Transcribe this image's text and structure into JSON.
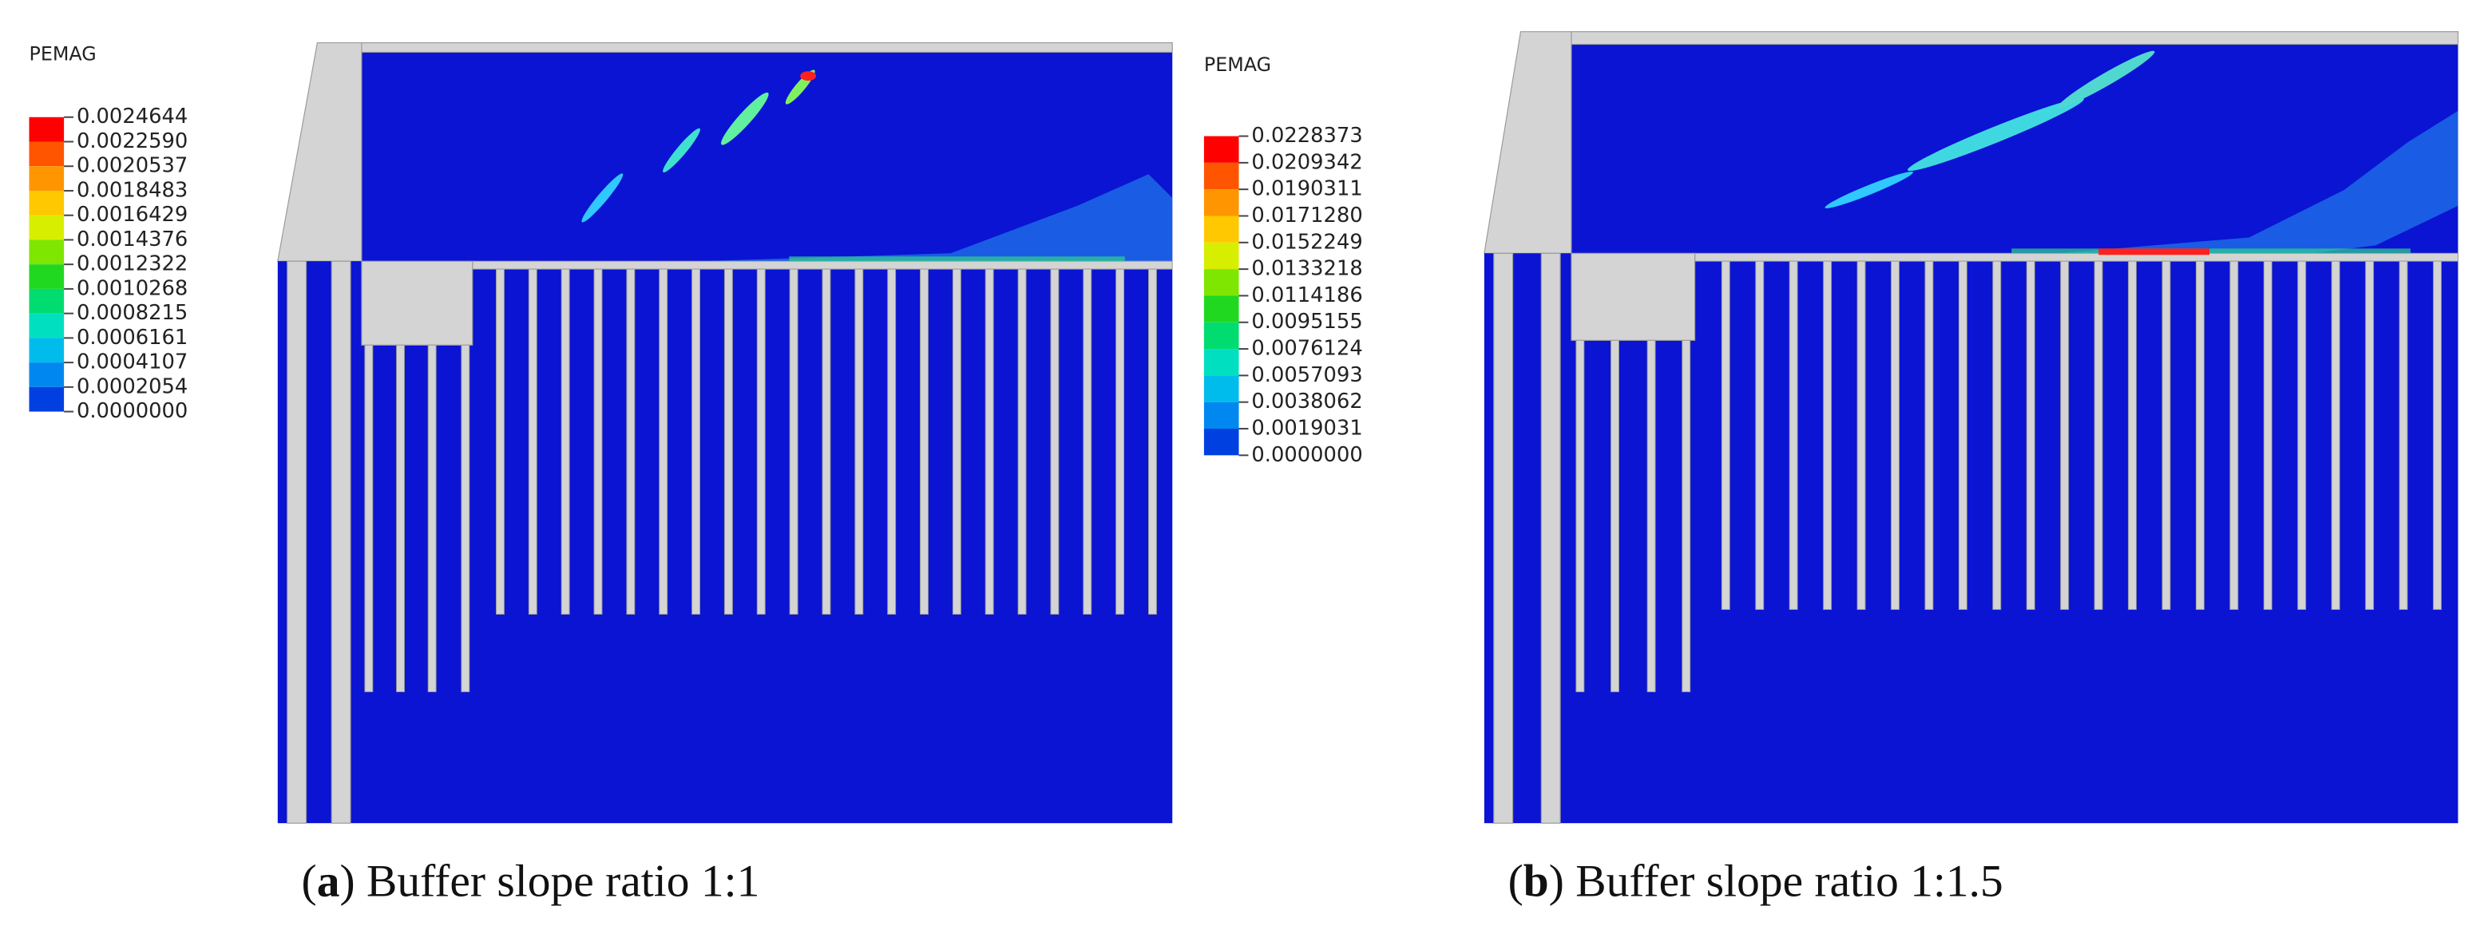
{
  "panels": [
    {
      "legend_title": "PEMAG",
      "legend_labels": [
        "0.0024644",
        "0.0022590",
        "0.0020537",
        "0.0018483",
        "0.0016429",
        "0.0014376",
        "0.0012322",
        "0.0010268",
        "0.0008215",
        "0.0006161",
        "0.0004107",
        "0.0002054",
        "0.0000000"
      ],
      "caption": {
        "prefix": "(",
        "label": "a",
        "text": ") Buffer slope ratio 1:1"
      }
    },
    {
      "legend_title": "PEMAG",
      "legend_labels": [
        "0.0228373",
        "0.0209342",
        "0.0190311",
        "0.0171280",
        "0.0152249",
        "0.0133218",
        "0.0114186",
        "0.0095155",
        "0.0076124",
        "0.0057093",
        "0.0038062",
        "0.0019031",
        "0.0000000"
      ],
      "caption": {
        "prefix": "(",
        "label": "b",
        "text": ") Buffer slope ratio 1:1.5"
      }
    }
  ]
}
